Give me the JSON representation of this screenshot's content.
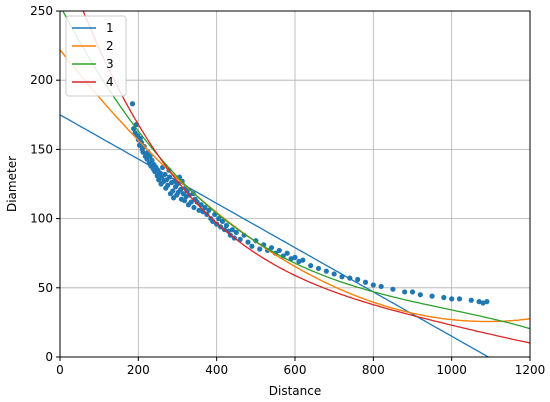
{
  "chart_data": {
    "type": "scatter",
    "xlabel": "Distance",
    "ylabel": "Diameter",
    "xlim": [
      0,
      1200
    ],
    "ylim": [
      0,
      250
    ],
    "xticks": [
      0,
      200,
      400,
      600,
      800,
      1000,
      1200
    ],
    "yticks": [
      0,
      50,
      100,
      150,
      200,
      250
    ],
    "grid": true,
    "legend_position": "top-left",
    "scatter_color": "#1f77b4",
    "scatter": [
      [
        185,
        183
      ],
      [
        188,
        165
      ],
      [
        192,
        162
      ],
      [
        195,
        168
      ],
      [
        198,
        160
      ],
      [
        200,
        157
      ],
      [
        203,
        153
      ],
      [
        205,
        158
      ],
      [
        208,
        155
      ],
      [
        210,
        150
      ],
      [
        212,
        148
      ],
      [
        215,
        152
      ],
      [
        218,
        145
      ],
      [
        220,
        147
      ],
      [
        222,
        143
      ],
      [
        225,
        148
      ],
      [
        228,
        140
      ],
      [
        230,
        145
      ],
      [
        232,
        138
      ],
      [
        235,
        142
      ],
      [
        238,
        136
      ],
      [
        240,
        139
      ],
      [
        242,
        134
      ],
      [
        245,
        137
      ],
      [
        248,
        131
      ],
      [
        250,
        135
      ],
      [
        252,
        128
      ],
      [
        255,
        133
      ],
      [
        258,
        125
      ],
      [
        260,
        130
      ],
      [
        262,
        137
      ],
      [
        265,
        127
      ],
      [
        268,
        132
      ],
      [
        270,
        122
      ],
      [
        272,
        128
      ],
      [
        275,
        124
      ],
      [
        278,
        135
      ],
      [
        280,
        130
      ],
      [
        282,
        118
      ],
      [
        285,
        126
      ],
      [
        288,
        120
      ],
      [
        290,
        115
      ],
      [
        292,
        127
      ],
      [
        295,
        123
      ],
      [
        298,
        117
      ],
      [
        300,
        125
      ],
      [
        302,
        119
      ],
      [
        305,
        130
      ],
      [
        308,
        121
      ],
      [
        310,
        114
      ],
      [
        312,
        127
      ],
      [
        315,
        118
      ],
      [
        318,
        113
      ],
      [
        320,
        122
      ],
      [
        322,
        116
      ],
      [
        325,
        120
      ],
      [
        328,
        110
      ],
      [
        330,
        117
      ],
      [
        335,
        112
      ],
      [
        340,
        118
      ],
      [
        342,
        108
      ],
      [
        345,
        114
      ],
      [
        350,
        112
      ],
      [
        355,
        106
      ],
      [
        360,
        110
      ],
      [
        365,
        105
      ],
      [
        370,
        108
      ],
      [
        375,
        103
      ],
      [
        380,
        106
      ],
      [
        385,
        100
      ],
      [
        390,
        98
      ],
      [
        395,
        103
      ],
      [
        400,
        96
      ],
      [
        405,
        100
      ],
      [
        410,
        94
      ],
      [
        415,
        98
      ],
      [
        420,
        92
      ],
      [
        425,
        95
      ],
      [
        430,
        91
      ],
      [
        435,
        88
      ],
      [
        440,
        92
      ],
      [
        445,
        86
      ],
      [
        450,
        90
      ],
      [
        460,
        85
      ],
      [
        470,
        88
      ],
      [
        480,
        83
      ],
      [
        490,
        80
      ],
      [
        500,
        84
      ],
      [
        510,
        78
      ],
      [
        520,
        81
      ],
      [
        530,
        77
      ],
      [
        540,
        79
      ],
      [
        550,
        75
      ],
      [
        560,
        77
      ],
      [
        570,
        73
      ],
      [
        580,
        75
      ],
      [
        590,
        71
      ],
      [
        600,
        72
      ],
      [
        610,
        69
      ],
      [
        620,
        70
      ],
      [
        640,
        66
      ],
      [
        660,
        64
      ],
      [
        680,
        62
      ],
      [
        700,
        60
      ],
      [
        720,
        58
      ],
      [
        740,
        57
      ],
      [
        760,
        56
      ],
      [
        780,
        54
      ],
      [
        800,
        52
      ],
      [
        820,
        51
      ],
      [
        850,
        49
      ],
      [
        880,
        47
      ],
      [
        900,
        47
      ],
      [
        920,
        45
      ],
      [
        950,
        44
      ],
      [
        980,
        43
      ],
      [
        1000,
        42
      ],
      [
        1020,
        42
      ],
      [
        1050,
        41
      ],
      [
        1070,
        40
      ],
      [
        1080,
        39
      ],
      [
        1090,
        40
      ]
    ],
    "series": [
      {
        "name": "1",
        "color": "#1f77b4",
        "degree": 1,
        "coefficients": [
          175,
          -0.16
        ]
      },
      {
        "name": "2",
        "color": "#ff7f0e",
        "degree": 2,
        "coefficients": [
          222,
          -0.36,
          0.000165
        ]
      },
      {
        "name": "3",
        "color": "#2ca02c",
        "degree": 3,
        "coefficients": [
          254,
          -0.545,
          0.00049,
          -1.65e-07
        ]
      },
      {
        "name": "4",
        "color": "#d62728",
        "degree": 4,
        "coefficients": [
          295,
          -0.82,
          0.00105,
          -6.6e-07,
          1.58e-10
        ]
      }
    ],
    "extra_curve": {
      "color": "#bcbd22",
      "degree": 2,
      "coefficients": [
        222,
        -0.36,
        0.000165
      ]
    }
  }
}
